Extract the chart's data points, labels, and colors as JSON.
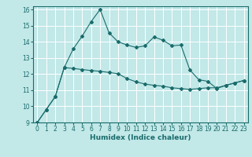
{
  "xlabel": "Humidex (Indice chaleur)",
  "bg_color": "#c2e8e8",
  "grid_color": "#ffffff",
  "line_color": "#1a6b6b",
  "xlim": [
    -0.5,
    23.5
  ],
  "ylim": [
    9,
    16.2
  ],
  "xticks": [
    0,
    1,
    2,
    3,
    4,
    5,
    6,
    7,
    8,
    9,
    10,
    11,
    12,
    13,
    14,
    15,
    16,
    17,
    18,
    19,
    20,
    21,
    22,
    23
  ],
  "yticks": [
    9,
    10,
    11,
    12,
    13,
    14,
    15,
    16
  ],
  "line1_x": [
    0,
    1,
    2,
    3,
    4,
    5,
    6,
    7,
    8,
    9,
    10,
    11,
    12,
    13,
    14,
    15,
    16,
    17,
    18,
    19,
    20,
    21,
    22,
    23
  ],
  "line1_y": [
    9.0,
    9.8,
    10.6,
    12.4,
    13.55,
    14.35,
    15.25,
    16.0,
    14.55,
    14.0,
    13.8,
    13.65,
    13.75,
    14.3,
    14.1,
    13.75,
    13.8,
    12.25,
    11.65,
    11.55,
    11.1,
    11.3,
    11.45,
    11.6
  ],
  "line2_x": [
    0,
    1,
    2,
    3,
    4,
    5,
    6,
    7,
    8,
    9,
    10,
    11,
    12,
    13,
    14,
    15,
    16,
    17,
    18,
    19,
    20,
    21,
    22,
    23
  ],
  "line2_y": [
    9.0,
    9.8,
    10.6,
    12.4,
    12.35,
    12.28,
    12.22,
    12.17,
    12.1,
    12.02,
    11.72,
    11.52,
    11.38,
    11.3,
    11.25,
    11.15,
    11.1,
    11.05,
    11.1,
    11.15,
    11.15,
    11.3,
    11.45,
    11.6
  ],
  "tick_fontsize": 5.5,
  "xlabel_fontsize": 6.5
}
